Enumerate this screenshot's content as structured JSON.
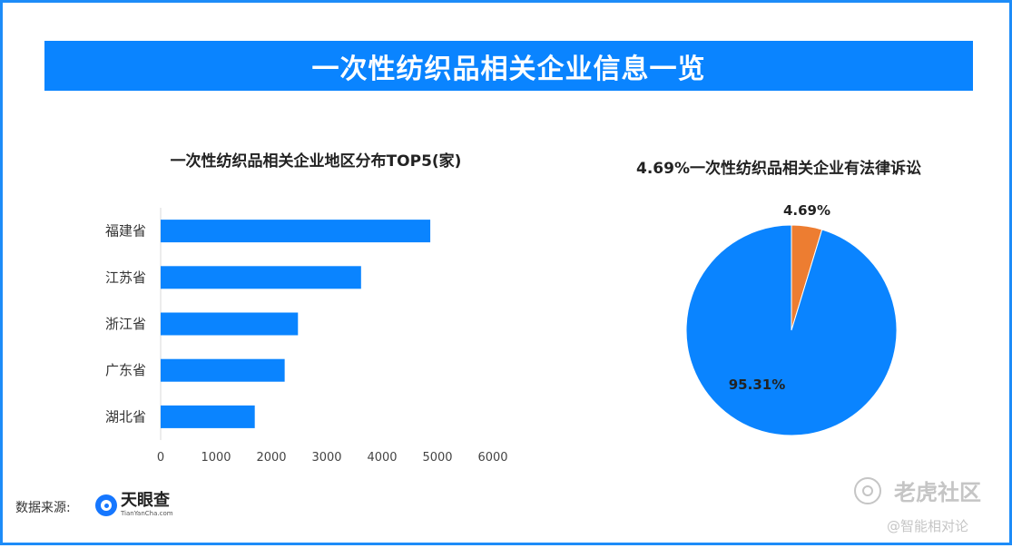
{
  "header": {
    "title": "一次性纺织品相关企业信息一览"
  },
  "chart_data": [
    {
      "type": "bar",
      "orientation": "horizontal",
      "title": "一次性纺织品相关企业地区分布TOP5(家)",
      "categories": [
        "福建省",
        "江苏省",
        "浙江省",
        "广东省",
        "湖北省"
      ],
      "values": [
        4870,
        3620,
        2480,
        2240,
        1700
      ],
      "xlim": [
        0,
        6000
      ],
      "xticks": [
        "0",
        "1000",
        "2000",
        "3000",
        "4000",
        "5000",
        "6000"
      ],
      "grid": false,
      "color": "#0a84ff"
    },
    {
      "type": "pie",
      "title": "4.69%一次性纺织品相关企业有法律诉讼",
      "slices": [
        {
          "label": "4.69%",
          "value": 4.69,
          "color": "#ed7d31"
        },
        {
          "label": "95.31%",
          "value": 95.31,
          "color": "#0a84ff"
        }
      ]
    }
  ],
  "footer": {
    "source_label": "数据来源:",
    "logo_cn": "天眼查",
    "logo_en": "TianYanCha.com"
  },
  "watermark": {
    "line1": "老虎社区",
    "line2": "@智能相对论"
  }
}
